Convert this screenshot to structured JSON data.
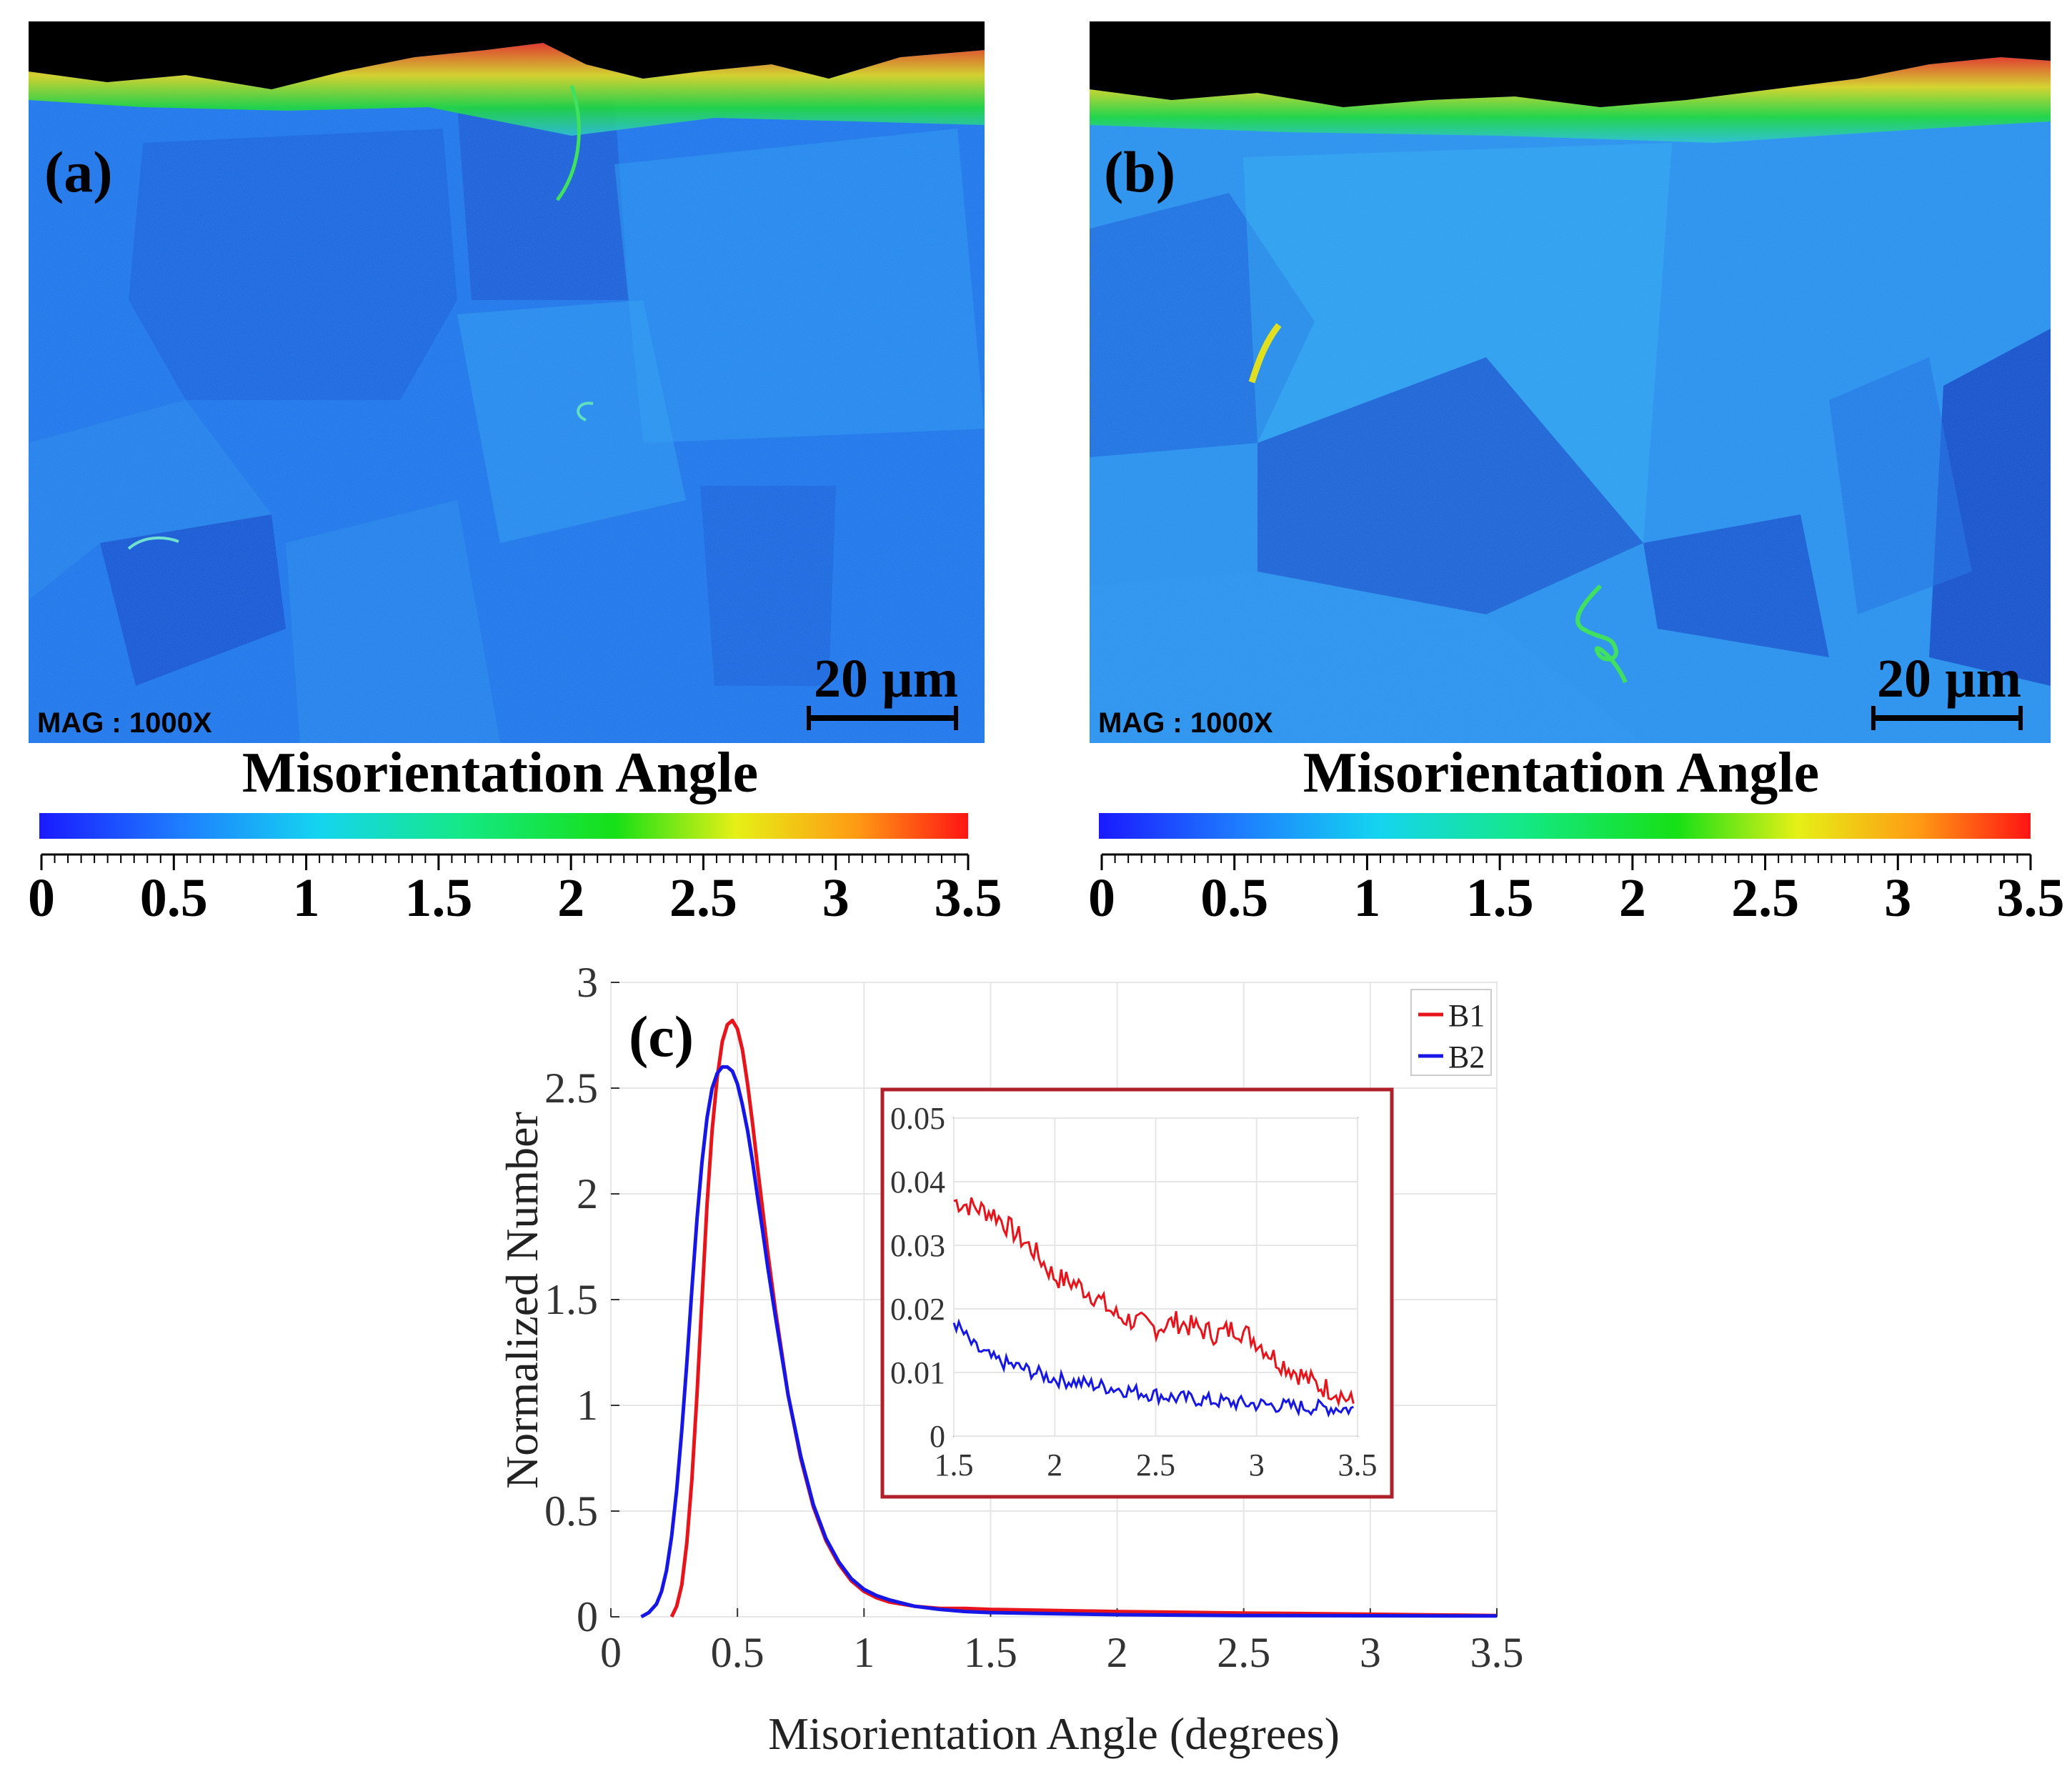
{
  "panels": {
    "a": {
      "label": "(a)",
      "mag_text": "MAG : 1000X",
      "scale_text": "20 µm",
      "colorbar_title": "Misorientation Angle",
      "colorbar_ticks": [
        "0",
        "0.5",
        "1",
        "1.5",
        "2",
        "2.5",
        "3",
        "3.5"
      ]
    },
    "b": {
      "label": "(b)",
      "mag_text": "MAG : 1000X",
      "scale_text": "20 µm",
      "colorbar_title": "Misorientation Angle",
      "colorbar_ticks": [
        "0",
        "0.5",
        "1",
        "1.5",
        "2",
        "2.5",
        "3",
        "3.5"
      ]
    }
  },
  "colors": {
    "map_blue": "#1f6ee8",
    "map_light": "#2fa6f0",
    "map_dark": "#1246c8",
    "b1": "#e8141c",
    "b2": "#1616e6",
    "inset_frame": "#b0202a"
  },
  "chart_data": {
    "type": "line",
    "panel_label": "(c)",
    "title": "",
    "xlabel": "Misorientation Angle (degrees)",
    "ylabel": "Normalized Number",
    "xlim": [
      0,
      3.5
    ],
    "ylim": [
      0,
      3
    ],
    "xticks": [
      "0",
      "0.5",
      "1",
      "1.5",
      "2",
      "2.5",
      "3",
      "3.5"
    ],
    "yticks": [
      "0",
      "0.5",
      "1",
      "1.5",
      "2",
      "2.5",
      "3"
    ],
    "legend": [
      "B1",
      "B2"
    ],
    "legend_position": "top-right",
    "grid": true,
    "series": [
      {
        "name": "B1",
        "color": "#e8141c",
        "x": [
          0.24,
          0.26,
          0.28,
          0.3,
          0.32,
          0.34,
          0.36,
          0.38,
          0.4,
          0.42,
          0.44,
          0.46,
          0.48,
          0.5,
          0.52,
          0.54,
          0.56,
          0.58,
          0.6,
          0.62,
          0.65,
          0.7,
          0.75,
          0.8,
          0.85,
          0.9,
          0.95,
          1.0,
          1.05,
          1.1,
          1.2,
          1.3,
          1.4,
          1.5,
          1.75,
          2.0,
          2.5,
          3.0,
          3.5
        ],
        "y": [
          0.0,
          0.05,
          0.15,
          0.35,
          0.65,
          1.05,
          1.5,
          1.95,
          2.3,
          2.55,
          2.72,
          2.8,
          2.82,
          2.78,
          2.68,
          2.52,
          2.33,
          2.12,
          1.92,
          1.72,
          1.45,
          1.05,
          0.75,
          0.52,
          0.36,
          0.25,
          0.17,
          0.12,
          0.09,
          0.07,
          0.05,
          0.04,
          0.04,
          0.035,
          0.03,
          0.025,
          0.018,
          0.012,
          0.006
        ]
      },
      {
        "name": "B2",
        "color": "#1616e6",
        "x": [
          0.12,
          0.15,
          0.18,
          0.2,
          0.22,
          0.24,
          0.26,
          0.28,
          0.3,
          0.32,
          0.34,
          0.36,
          0.38,
          0.4,
          0.42,
          0.44,
          0.46,
          0.48,
          0.5,
          0.52,
          0.54,
          0.56,
          0.58,
          0.6,
          0.62,
          0.65,
          0.7,
          0.75,
          0.8,
          0.85,
          0.9,
          0.95,
          1.0,
          1.05,
          1.1,
          1.2,
          1.3,
          1.4,
          1.5,
          1.75,
          2.0,
          2.5,
          3.0,
          3.5
        ],
        "y": [
          0.0,
          0.02,
          0.06,
          0.12,
          0.22,
          0.38,
          0.6,
          0.88,
          1.2,
          1.55,
          1.88,
          2.15,
          2.36,
          2.5,
          2.57,
          2.6,
          2.6,
          2.58,
          2.52,
          2.42,
          2.3,
          2.15,
          1.98,
          1.82,
          1.65,
          1.42,
          1.05,
          0.76,
          0.53,
          0.37,
          0.26,
          0.18,
          0.13,
          0.1,
          0.08,
          0.05,
          0.035,
          0.025,
          0.02,
          0.015,
          0.01,
          0.006,
          0.005,
          0.004
        ]
      }
    ],
    "inset": {
      "xlim": [
        1.5,
        3.5
      ],
      "ylim": [
        0,
        0.05
      ],
      "xticks": [
        "1.5",
        "2",
        "2.5",
        "3",
        "3.5"
      ],
      "yticks": [
        "0",
        "0.01",
        "0.02",
        "0.03",
        "0.04",
        "0.05"
      ],
      "series": [
        {
          "name": "B1",
          "color": "#e8141c",
          "x": [
            1.5,
            1.6,
            1.7,
            1.8,
            1.9,
            2.0,
            2.1,
            2.2,
            2.3,
            2.4,
            2.5,
            2.6,
            2.7,
            2.8,
            2.9,
            3.0,
            3.1,
            3.2,
            3.3,
            3.4,
            3.48
          ],
          "y": [
            0.037,
            0.036,
            0.035,
            0.032,
            0.029,
            0.025,
            0.024,
            0.022,
            0.019,
            0.018,
            0.017,
            0.018,
            0.017,
            0.016,
            0.017,
            0.015,
            0.012,
            0.01,
            0.008,
            0.007,
            0.005
          ]
        },
        {
          "name": "B2",
          "color": "#1616e6",
          "x": [
            1.5,
            1.6,
            1.7,
            1.8,
            1.9,
            2.0,
            2.1,
            2.2,
            2.3,
            2.4,
            2.5,
            2.6,
            2.7,
            2.8,
            2.9,
            3.0,
            3.1,
            3.2,
            3.3,
            3.4,
            3.48
          ],
          "y": [
            0.018,
            0.014,
            0.012,
            0.011,
            0.01,
            0.009,
            0.0085,
            0.008,
            0.0075,
            0.007,
            0.0065,
            0.006,
            0.0058,
            0.0055,
            0.0052,
            0.005,
            0.0048,
            0.0046,
            0.0045,
            0.0044,
            0.0042
          ]
        }
      ]
    }
  }
}
